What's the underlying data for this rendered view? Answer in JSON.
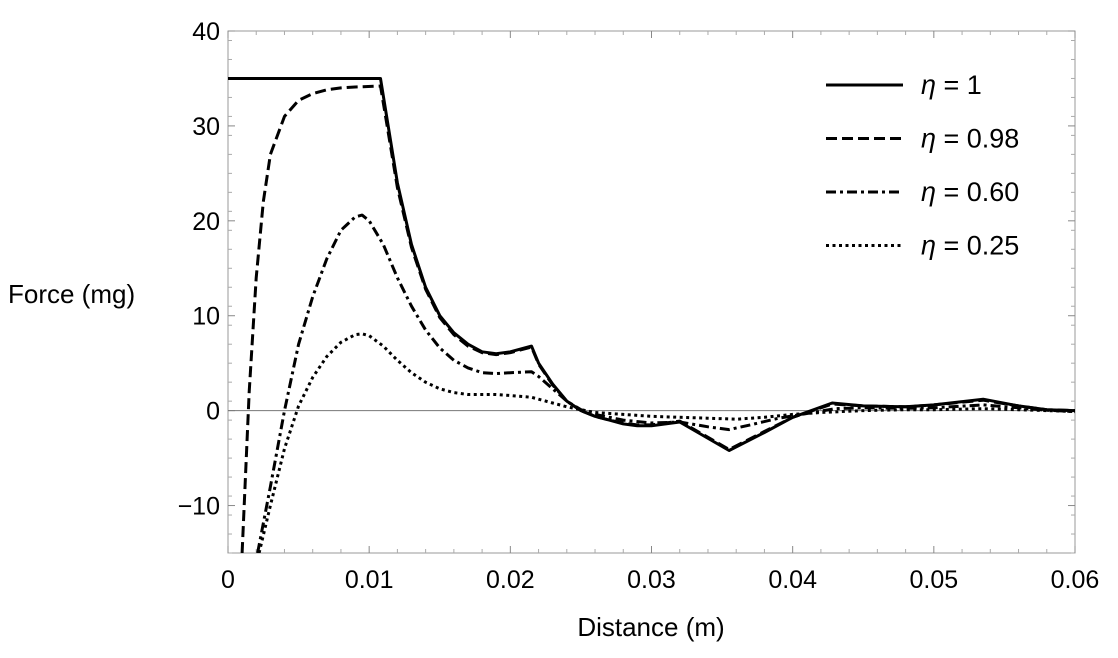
{
  "chart_data": {
    "type": "line",
    "title": "",
    "xlabel": "Distance (m)",
    "ylabel": "Force (mg)",
    "xlim": [
      0,
      0.06
    ],
    "ylim": [
      -15,
      40
    ],
    "x_ticks": [
      {
        "value": 0,
        "label": "0"
      },
      {
        "value": 0.01,
        "label": "0.01"
      },
      {
        "value": 0.02,
        "label": "0.02"
      },
      {
        "value": 0.03,
        "label": "0.03"
      },
      {
        "value": 0.04,
        "label": "0.04"
      },
      {
        "value": 0.05,
        "label": "0.05"
      },
      {
        "value": 0.06,
        "label": "0.06"
      }
    ],
    "y_ticks": [
      {
        "value": -10,
        "label": "−10"
      },
      {
        "value": 0,
        "label": "0"
      },
      {
        "value": 10,
        "label": "10"
      },
      {
        "value": 20,
        "label": "20"
      },
      {
        "value": 30,
        "label": "30"
      },
      {
        "value": 40,
        "label": "40"
      }
    ],
    "legend_position": "top-right",
    "grid": false,
    "zero_line": true,
    "series": [
      {
        "name": "η = 1",
        "eta_symbol": "η",
        "eta_value": "= 1",
        "dash": "solid",
        "color": "#000000",
        "x": [
          0,
          0.002,
          0.004,
          0.006,
          0.008,
          0.0108,
          0.012,
          0.013,
          0.014,
          0.015,
          0.016,
          0.017,
          0.018,
          0.019,
          0.02,
          0.0215,
          0.022,
          0.023,
          0.024,
          0.025,
          0.026,
          0.027,
          0.028,
          0.029,
          0.03,
          0.031,
          0.032,
          0.0355,
          0.038,
          0.04,
          0.0428,
          0.045,
          0.048,
          0.05,
          0.0535,
          0.056,
          0.058,
          0.06
        ],
        "y": [
          35,
          35,
          35,
          35,
          35,
          35,
          24,
          17.5,
          13,
          10,
          8.2,
          7,
          6.2,
          6,
          6.2,
          6.8,
          5,
          2.8,
          1,
          0,
          -0.6,
          -1,
          -1.4,
          -1.6,
          -1.6,
          -1.4,
          -1.2,
          -4.2,
          -2.3,
          -0.7,
          0.8,
          0.5,
          0.4,
          0.6,
          1.2,
          0.5,
          0.1,
          0
        ]
      },
      {
        "name": "η = 0.98",
        "eta_symbol": "η",
        "eta_value": "= 0.98",
        "dash": "dashed",
        "color": "#000000",
        "x": [
          0.001,
          0.0015,
          0.002,
          0.0025,
          0.003,
          0.004,
          0.005,
          0.006,
          0.007,
          0.008,
          0.009,
          0.0108,
          0.012,
          0.013,
          0.014,
          0.015,
          0.016,
          0.017,
          0.018,
          0.019,
          0.02,
          0.0215,
          0.022,
          0.023,
          0.024,
          0.025,
          0.026,
          0.027,
          0.028,
          0.029,
          0.03,
          0.031,
          0.032,
          0.0355,
          0.038,
          0.04,
          0.0428,
          0.045,
          0.048,
          0.05,
          0.0535,
          0.056,
          0.058,
          0.06
        ],
        "y": [
          -15,
          2,
          14,
          22,
          27,
          31,
          32.7,
          33.4,
          33.8,
          34,
          34.1,
          34.2,
          23.5,
          17.2,
          12.8,
          9.8,
          8,
          6.8,
          6.1,
          5.9,
          6.1,
          6.7,
          4.9,
          2.7,
          1,
          0,
          -0.6,
          -1,
          -1.3,
          -1.5,
          -1.5,
          -1.3,
          -1.1,
          -4.1,
          -2.2,
          -0.7,
          0.7,
          0.5,
          0.4,
          0.6,
          1.1,
          0.5,
          0.1,
          0
        ]
      },
      {
        "name": "η = 0.60",
        "eta_symbol": "η",
        "eta_value": "= 0.60",
        "dash": "dashdot",
        "color": "#000000",
        "x": [
          0.0021,
          0.003,
          0.004,
          0.005,
          0.006,
          0.007,
          0.008,
          0.009,
          0.0095,
          0.01,
          0.011,
          0.012,
          0.013,
          0.014,
          0.015,
          0.016,
          0.017,
          0.018,
          0.019,
          0.02,
          0.0215,
          0.022,
          0.023,
          0.024,
          0.025,
          0.026,
          0.028,
          0.03,
          0.032,
          0.034,
          0.0355,
          0.037,
          0.039,
          0.041,
          0.043,
          0.045,
          0.048,
          0.05,
          0.0535,
          0.056,
          0.058,
          0.06
        ],
        "y": [
          -15,
          -8,
          0,
          7,
          12,
          16,
          19,
          20.4,
          20.6,
          20,
          17.5,
          14,
          11,
          8.5,
          6.6,
          5.3,
          4.5,
          4,
          3.9,
          4,
          4.1,
          3.6,
          2.3,
          1,
          0.1,
          -0.4,
          -1,
          -1.3,
          -1.2,
          -1.7,
          -2,
          -1.5,
          -0.8,
          -0.3,
          0.2,
          0.3,
          0.25,
          0.3,
          0.6,
          0.3,
          0.05,
          -0.1
        ]
      },
      {
        "name": "η = 0.25",
        "eta_symbol": "η",
        "eta_value": "= 0.25",
        "dash": "dotted",
        "color": "#000000",
        "x": [
          0.0022,
          0.003,
          0.004,
          0.005,
          0.006,
          0.007,
          0.008,
          0.009,
          0.0095,
          0.01,
          0.011,
          0.012,
          0.013,
          0.014,
          0.015,
          0.016,
          0.017,
          0.018,
          0.019,
          0.02,
          0.0215,
          0.022,
          0.023,
          0.024,
          0.025,
          0.026,
          0.028,
          0.03,
          0.032,
          0.034,
          0.036,
          0.038,
          0.04,
          0.042,
          0.045,
          0.048,
          0.05,
          0.0535,
          0.056,
          0.058,
          0.06
        ],
        "y": [
          -15,
          -10,
          -4,
          0.5,
          3.5,
          5.7,
          7.2,
          8,
          8.1,
          7.9,
          6.8,
          5.3,
          4,
          3,
          2.3,
          1.9,
          1.7,
          1.7,
          1.7,
          1.6,
          1.4,
          1.2,
          0.8,
          0.4,
          0.1,
          -0.2,
          -0.4,
          -0.6,
          -0.7,
          -0.8,
          -0.9,
          -0.7,
          -0.4,
          -0.2,
          0,
          0.1,
          0.1,
          0.2,
          0.1,
          0,
          -0.1
        ]
      }
    ]
  }
}
